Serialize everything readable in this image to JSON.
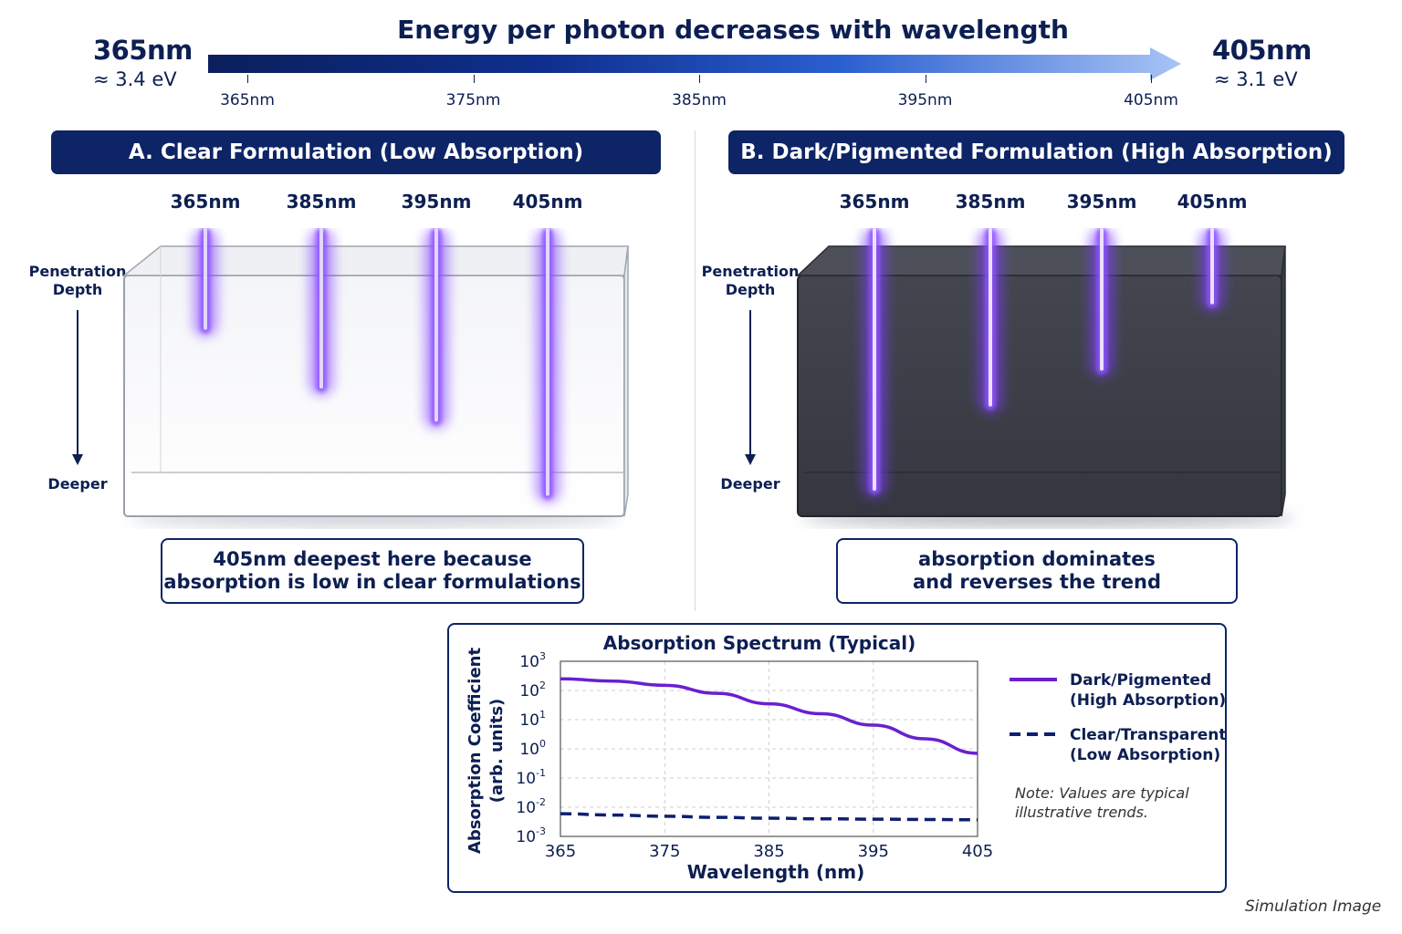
{
  "header": {
    "left": {
      "wavelength": "365nm",
      "energy": "≈ 3.4 eV"
    },
    "right": {
      "wavelength": "405nm",
      "energy": "≈ 3.1 eV"
    },
    "title": "Energy per photon decreases with wavelength",
    "ticks": [
      "365nm",
      "375nm",
      "385nm",
      "395nm",
      "405nm"
    ],
    "colors": {
      "start": "#0b1f5c",
      "end": "#a8c3f5"
    }
  },
  "panel_a": {
    "title": "A. Clear Formulation (Low Absorption)",
    "beams": [
      {
        "label": "365nm",
        "relative_depth": 0.32
      },
      {
        "label": "385nm",
        "relative_depth": 0.55
      },
      {
        "label": "395nm",
        "relative_depth": 0.68
      },
      {
        "label": "405nm",
        "relative_depth": 0.97
      }
    ],
    "penetration_label": "Penetration Depth",
    "deeper_label": "Deeper",
    "caption_line1": "405nm deepest here because",
    "caption_line2": "absorption is low in clear formulations"
  },
  "panel_b": {
    "title": "B. Dark/Pigmented Formulation (High Absorption)",
    "beams": [
      {
        "label": "365nm",
        "relative_depth": 0.95
      },
      {
        "label": "385nm",
        "relative_depth": 0.62
      },
      {
        "label": "395nm",
        "relative_depth": 0.48
      },
      {
        "label": "405nm",
        "relative_depth": 0.22
      }
    ],
    "penetration_label": "Penetration Depth",
    "deeper_label": "Deeper",
    "caption_line1": "absorption dominates",
    "caption_line2": "and reverses the trend"
  },
  "chart_data": {
    "type": "line",
    "title": "Absorption Spectrum (Typical)",
    "xlabel": "Wavelength (nm)",
    "ylabel_line1": "Absorption Coefficient",
    "ylabel_line2": "(arb. units)",
    "xlim": [
      365,
      405
    ],
    "xticks": [
      "365",
      "375",
      "385",
      "395",
      "405"
    ],
    "yscale": "log",
    "ylim_exp": [
      -3,
      3
    ],
    "yticks_exp": [
      "3",
      "2",
      "1",
      "0",
      "-1",
      "-2",
      "-3"
    ],
    "grid": true,
    "x": [
      365,
      370,
      375,
      380,
      385,
      390,
      395,
      400,
      405
    ],
    "series": [
      {
        "name": "Dark/Pigmented (High Absorption)",
        "legend_line1": "Dark/Pigmented",
        "legend_line2": "(High Absorption)",
        "style": "solid",
        "color": "#6a1fd0",
        "values": [
          250,
          210,
          150,
          80,
          35,
          16,
          6.5,
          2.2,
          0.7
        ]
      },
      {
        "name": "Clear/Transparent (Low Absorption)",
        "legend_line1": "Clear/Transparent",
        "legend_line2": "(Low Absorption)",
        "style": "dashed",
        "color": "#0d1f70",
        "values": [
          0.006,
          0.0054,
          0.0049,
          0.0045,
          0.0042,
          0.004,
          0.0039,
          0.0038,
          0.0037
        ]
      }
    ],
    "note_line1": "Note: Values are typical",
    "note_line2": "illustrative trends."
  },
  "footer": {
    "label": "Simulation Image"
  }
}
